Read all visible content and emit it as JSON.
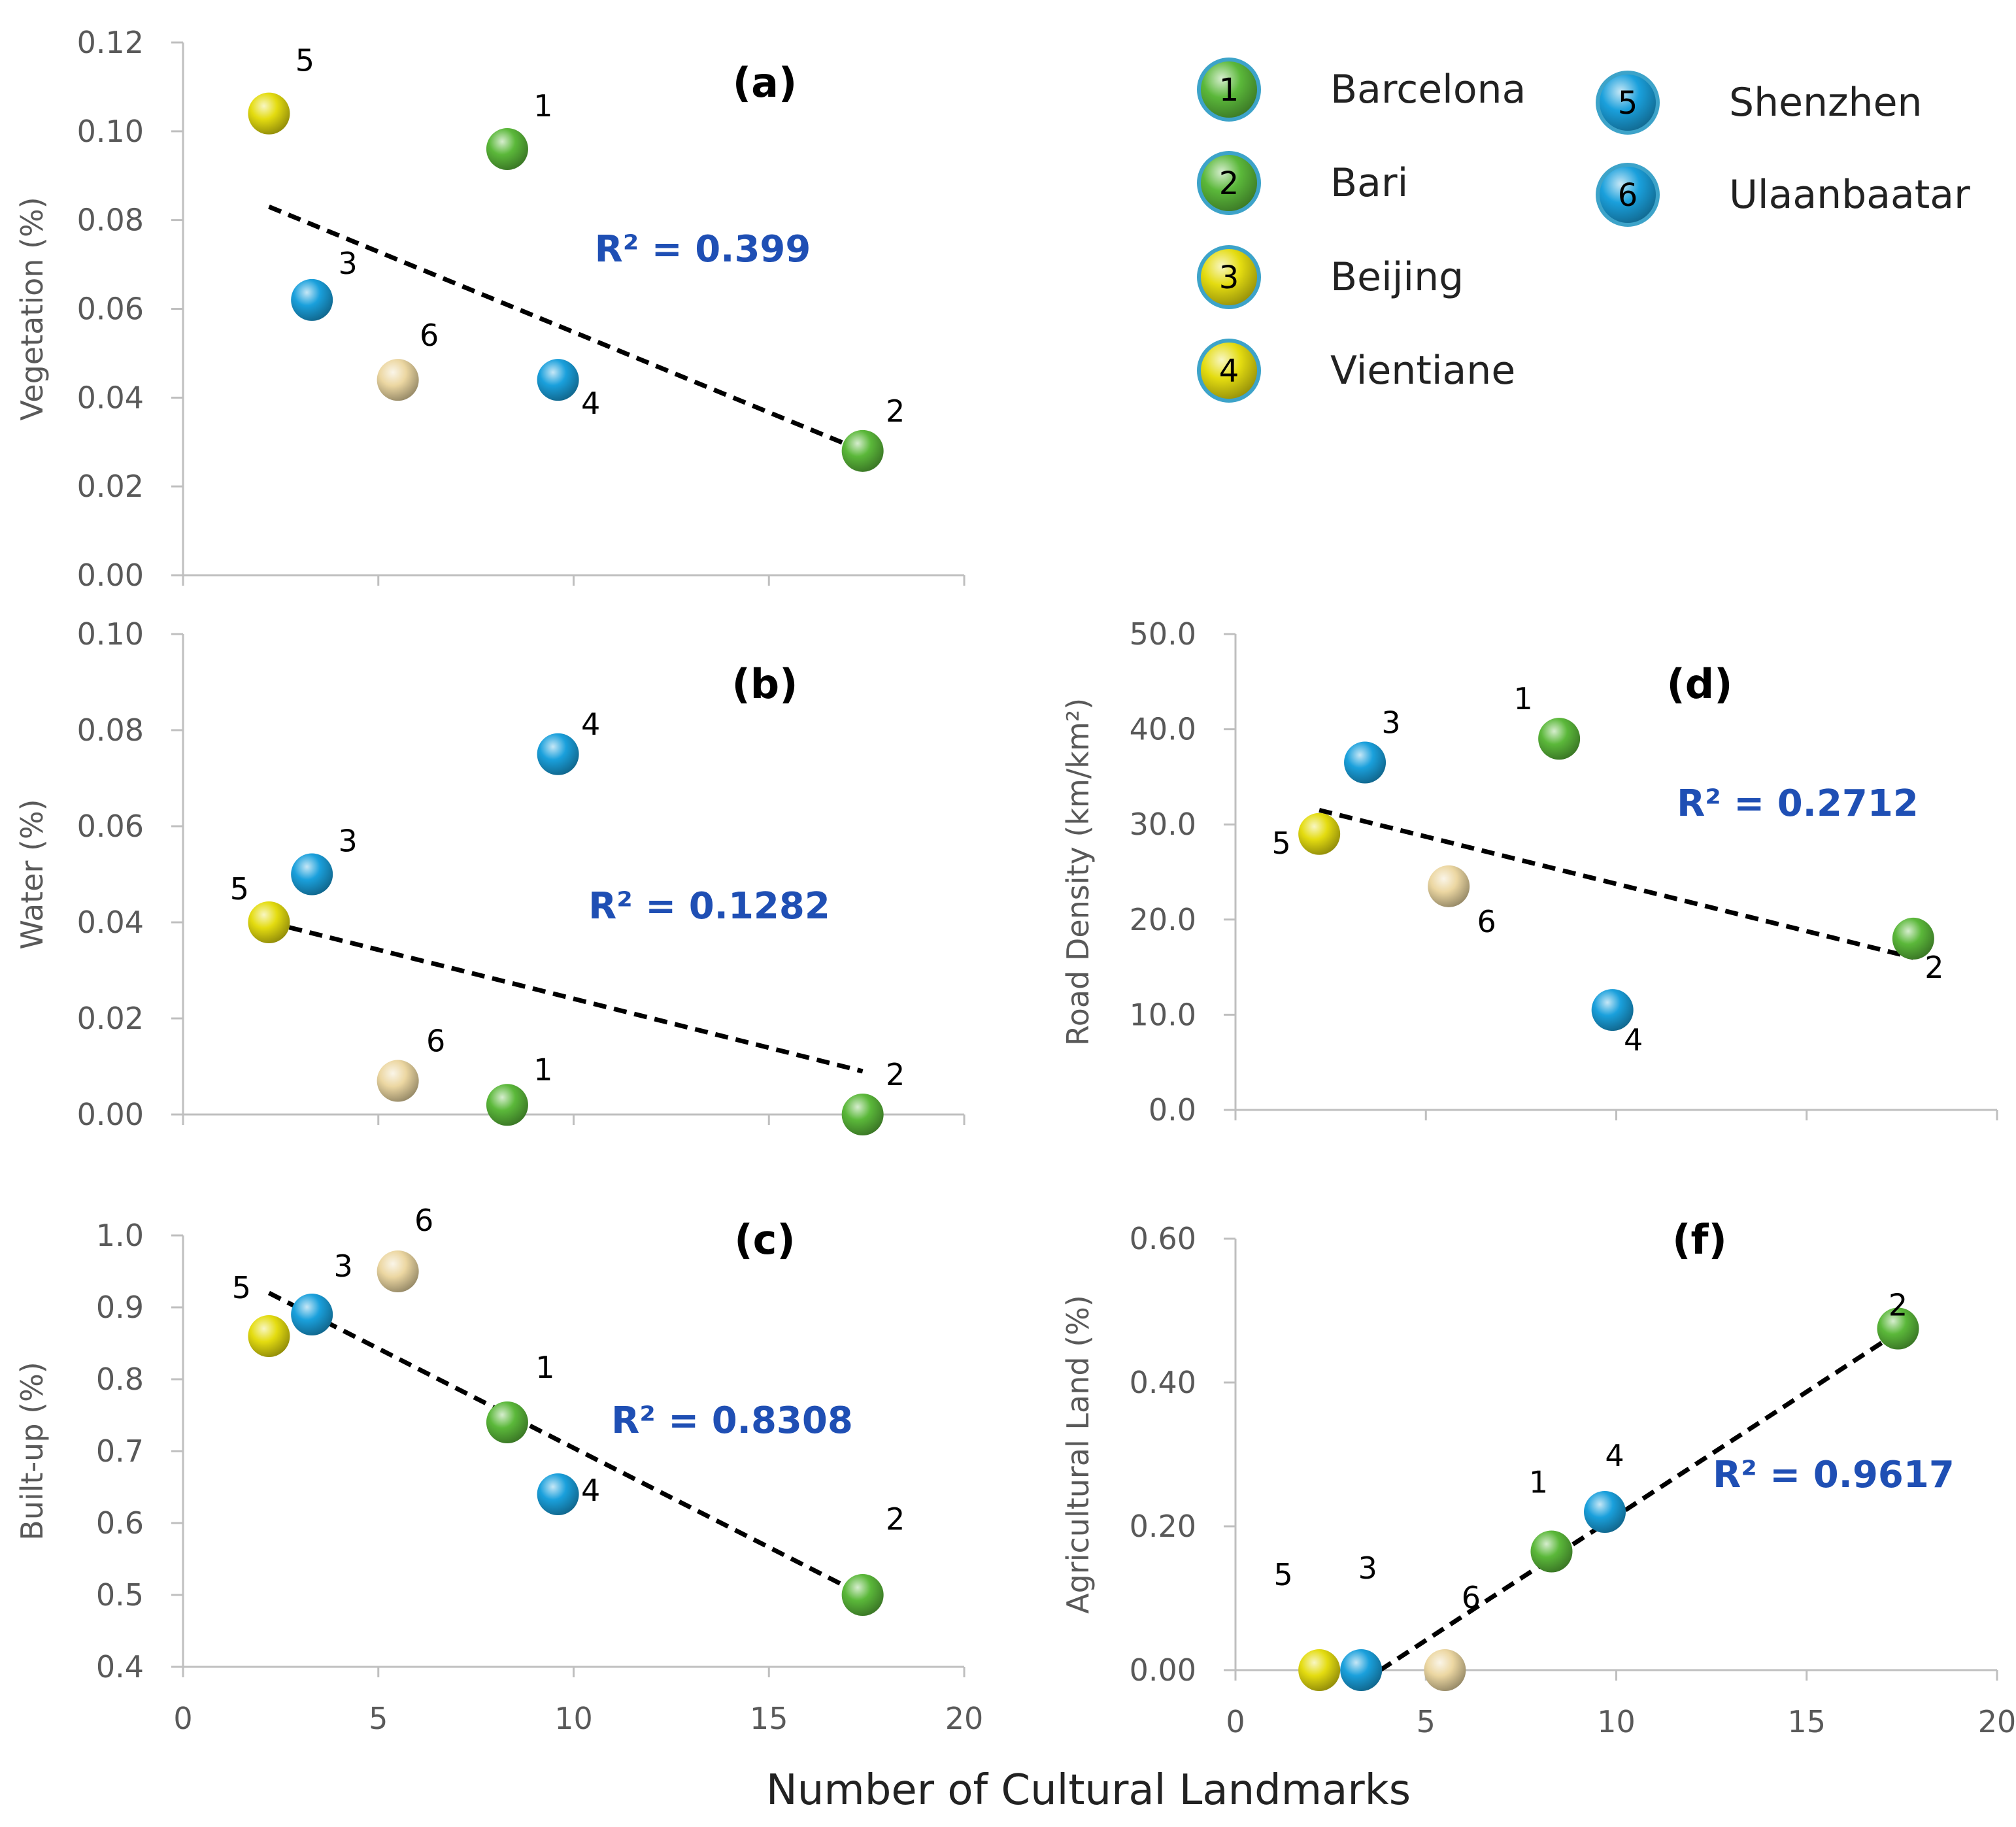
{
  "colors": {
    "green": "#5bb83a",
    "blue": "#1aa0dc",
    "yellow": "#e4dc10",
    "cream": "#ecd7a2",
    "legend_ring": "#3da3c9",
    "trend": "#000000",
    "r2": "#1f4fb4",
    "axis": "#bfbfbf"
  },
  "legend": [
    {
      "num": "1",
      "city": "Barcelona",
      "color": "green"
    },
    {
      "num": "2",
      "city": "Bari",
      "color": "green"
    },
    {
      "num": "3",
      "city": "Beijing",
      "color": "yellow"
    },
    {
      "num": "4",
      "city": "Vientiane",
      "color": "yellow"
    },
    {
      "num": "5",
      "city": "Shenzhen",
      "color": "blue"
    },
    {
      "num": "6",
      "city": "Ulaanbaatar",
      "color": "blue"
    }
  ],
  "x_axis_title": "Number of Cultural Landmarks",
  "chart_data": [
    {
      "type": "scatter",
      "panel": "(a)",
      "ylabel": "Vegetation (%)",
      "xlim": [
        0,
        20
      ],
      "ylim": [
        0,
        0.12
      ],
      "yticks": [
        "0.00",
        "0.02",
        "0.04",
        "0.06",
        "0.08",
        "0.10",
        "0.12"
      ],
      "xticks": [],
      "r2": "R² = 0.399",
      "trend": [
        [
          2.2,
          0.083
        ],
        [
          17.4,
          0.028
        ]
      ],
      "points": [
        {
          "label": "5",
          "x": 2.2,
          "y": 0.104,
          "color": "yellow"
        },
        {
          "label": "1",
          "x": 8.3,
          "y": 0.096,
          "color": "green"
        },
        {
          "label": "3",
          "x": 3.3,
          "y": 0.062,
          "color": "blue"
        },
        {
          "label": "6",
          "x": 5.5,
          "y": 0.044,
          "color": "cream"
        },
        {
          "label": "4",
          "x": 9.6,
          "y": 0.044,
          "color": "blue"
        },
        {
          "label": "2",
          "x": 17.4,
          "y": 0.028,
          "color": "green"
        }
      ]
    },
    {
      "type": "scatter",
      "panel": "(b)",
      "ylabel": "Water (%)",
      "xlim": [
        0,
        20
      ],
      "ylim": [
        0,
        0.1
      ],
      "yticks": [
        "0.00",
        "0.02",
        "0.04",
        "0.06",
        "0.08",
        "0.10"
      ],
      "xticks": [],
      "r2": "R² = 0.1282",
      "trend": [
        [
          2.2,
          0.04
        ],
        [
          17.4,
          0.009
        ]
      ],
      "points": [
        {
          "label": "4",
          "x": 9.6,
          "y": 0.075,
          "color": "blue"
        },
        {
          "label": "3",
          "x": 3.3,
          "y": 0.05,
          "color": "blue"
        },
        {
          "label": "5",
          "x": 2.2,
          "y": 0.04,
          "color": "yellow"
        },
        {
          "label": "6",
          "x": 5.5,
          "y": 0.007,
          "color": "cream"
        },
        {
          "label": "1",
          "x": 8.3,
          "y": 0.002,
          "color": "green"
        },
        {
          "label": "2",
          "x": 17.4,
          "y": 0.0,
          "color": "green"
        }
      ]
    },
    {
      "type": "scatter",
      "panel": "(c)",
      "ylabel": "Built-up (%)",
      "xlim": [
        0,
        20
      ],
      "ylim": [
        0.4,
        1.0
      ],
      "yticks": [
        "0.4",
        "0.5",
        "0.6",
        "0.7",
        "0.8",
        "0.9",
        "1.0"
      ],
      "xticks": [
        "0",
        "5",
        "10",
        "15",
        "20"
      ],
      "r2": "R² = 0.8308",
      "trend": [
        [
          2.2,
          0.92
        ],
        [
          17.4,
          0.5
        ]
      ],
      "points": [
        {
          "label": "6",
          "x": 5.5,
          "y": 0.95,
          "color": "cream"
        },
        {
          "label": "3",
          "x": 3.3,
          "y": 0.89,
          "color": "blue"
        },
        {
          "label": "5",
          "x": 2.2,
          "y": 0.86,
          "color": "yellow"
        },
        {
          "label": "1",
          "x": 8.3,
          "y": 0.74,
          "color": "green"
        },
        {
          "label": "4",
          "x": 9.6,
          "y": 0.64,
          "color": "blue"
        },
        {
          "label": "2",
          "x": 17.4,
          "y": 0.5,
          "color": "green"
        }
      ]
    },
    {
      "type": "scatter",
      "panel": "(d)",
      "ylabel": "Road Density (km/km²)",
      "xlim": [
        0,
        20
      ],
      "ylim": [
        0,
        50
      ],
      "yticks": [
        "0.0",
        "10.0",
        "20.0",
        "30.0",
        "40.0",
        "50.0"
      ],
      "xticks": [],
      "r2": "R² = 0.2712",
      "trend": [
        [
          2.2,
          31.5
        ],
        [
          17.8,
          16.0
        ]
      ],
      "points": [
        {
          "label": "1",
          "x": 8.5,
          "y": 39.0,
          "color": "green"
        },
        {
          "label": "3",
          "x": 3.4,
          "y": 36.5,
          "color": "blue"
        },
        {
          "label": "5",
          "x": 2.2,
          "y": 29.0,
          "color": "yellow"
        },
        {
          "label": "6",
          "x": 5.6,
          "y": 23.5,
          "color": "cream"
        },
        {
          "label": "2",
          "x": 17.8,
          "y": 18.0,
          "color": "green"
        },
        {
          "label": "4",
          "x": 9.9,
          "y": 10.5,
          "color": "blue"
        }
      ]
    },
    {
      "type": "scatter",
      "panel": "(f)",
      "ylabel": "Agricultural Land (%)",
      "xlim": [
        0,
        20
      ],
      "ylim": [
        0,
        0.6
      ],
      "yticks": [
        "0.00",
        "0.20",
        "0.40",
        "0.60"
      ],
      "xticks": [
        "0",
        "5",
        "10",
        "15",
        "20"
      ],
      "r2": "R² = 0.9617",
      "trend": [
        [
          3.8,
          0.0
        ],
        [
          17.4,
          0.47
        ]
      ],
      "points": [
        {
          "label": "2",
          "x": 17.4,
          "y": 0.475,
          "color": "green"
        },
        {
          "label": "4",
          "x": 9.7,
          "y": 0.22,
          "color": "blue"
        },
        {
          "label": "1",
          "x": 8.3,
          "y": 0.165,
          "color": "green"
        },
        {
          "label": "6",
          "x": 5.5,
          "y": 0.0,
          "color": "cream"
        },
        {
          "label": "3",
          "x": 3.3,
          "y": 0.0,
          "color": "blue"
        },
        {
          "label": "5",
          "x": 2.2,
          "y": 0.0,
          "color": "yellow"
        }
      ]
    }
  ]
}
